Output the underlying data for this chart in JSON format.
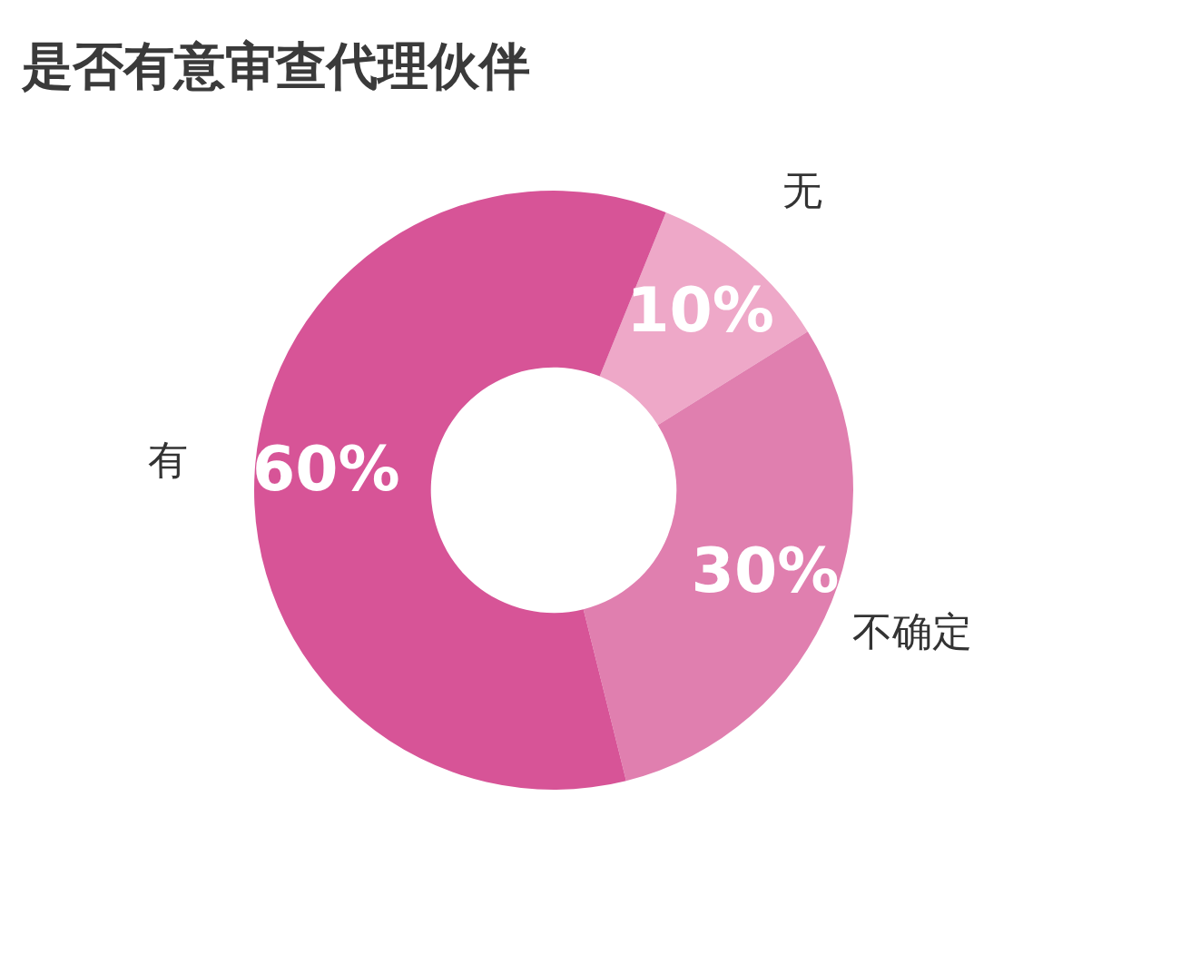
{
  "chart_data": {
    "type": "donut",
    "title": "是否有意审查代理伙伴",
    "categories": [
      "无",
      "不确定",
      "有"
    ],
    "values": [
      10,
      30,
      60
    ],
    "colors": [
      "#eea8c8",
      "#e07faf",
      "#d75497"
    ],
    "value_labels": [
      "10%",
      "30%",
      "60%"
    ],
    "legend": false
  }
}
